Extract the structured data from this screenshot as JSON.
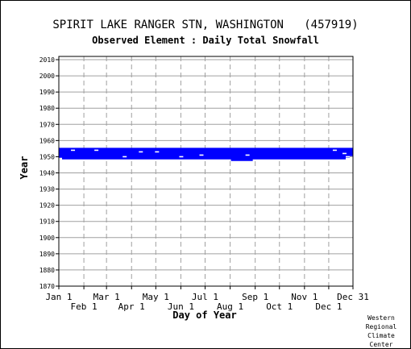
{
  "chart_data": {
    "type": "scatter",
    "title": "SPIRIT LAKE RANGER STN, WASHINGTON   (457919)",
    "subtitle": "Observed Element : Daily Total Snowfall",
    "xlabel": "Day of Year",
    "ylabel": "Year",
    "xlim": [
      1,
      365
    ],
    "ylim": [
      1870,
      2012
    ],
    "x_ticks_top": [
      "Jan 1",
      "Mar 1",
      "May 1",
      "Jul 1",
      "Sep 1",
      "Nov 1",
      "Dec 31"
    ],
    "x_ticks_bottom": [
      "Feb 1",
      "Apr 1",
      "Jun 1",
      "Aug 1",
      "Oct 1",
      "Dec 1"
    ],
    "y_ticks": [
      2010,
      2000,
      1990,
      1980,
      1970,
      1960,
      1950,
      1940,
      1930,
      1920,
      1910,
      1900,
      1890,
      1880,
      1870
    ],
    "grid": true,
    "series_color": "#0000ff",
    "records": [
      {
        "year": 1955,
        "start_day": 1,
        "end_day": 365
      },
      {
        "year": 1954,
        "start_day": 1,
        "end_day": 365
      },
      {
        "year": 1953,
        "start_day": 1,
        "end_day": 365
      },
      {
        "year": 1952,
        "start_day": 1,
        "end_day": 365
      },
      {
        "year": 1951,
        "start_day": 1,
        "end_day": 365
      },
      {
        "year": 1950,
        "start_day": 1,
        "end_day": 360
      },
      {
        "year": 1949,
        "start_day": 5,
        "end_day": 355
      },
      {
        "year": 1948,
        "start_day": 214,
        "end_day": 240
      }
    ]
  },
  "credit": [
    "Western",
    "Regional",
    "Climate",
    "Center"
  ]
}
